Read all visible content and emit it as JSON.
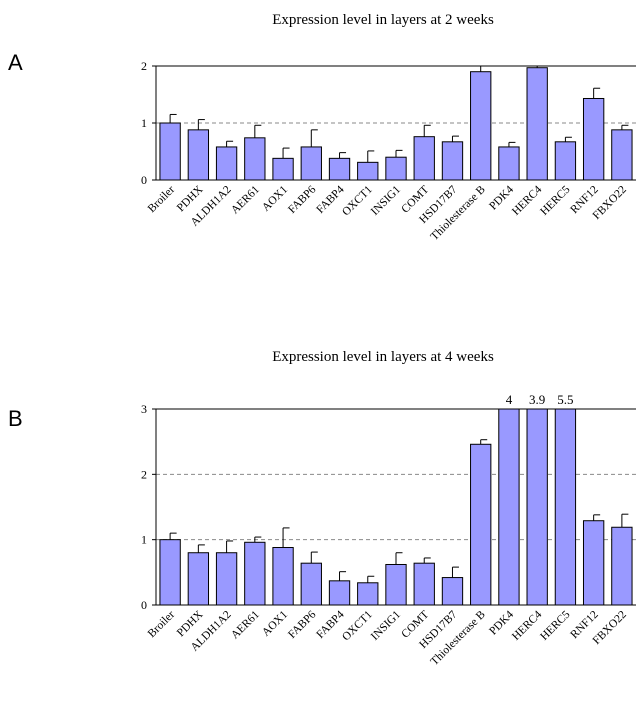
{
  "panels": [
    {
      "letter": "A",
      "chart_data": {
        "type": "bar",
        "title": "Expression level in layers at 2 weeks",
        "categories": [
          "Broiler",
          "PDHX",
          "ALDH1A2",
          "AER61",
          "AOX1",
          "FABP6",
          "FABP4",
          "OXCT1",
          "INSIG1",
          "COMT",
          "HSD17B7",
          "Thiolesterase B",
          "PDK4",
          "HERC4",
          "HERC5",
          "RNF12",
          "FBXO22"
        ],
        "values": [
          1.0,
          0.88,
          0.58,
          0.74,
          0.38,
          0.58,
          0.38,
          0.31,
          0.4,
          0.76,
          0.67,
          1.9,
          0.58,
          1.97,
          0.67,
          1.43,
          0.88
        ],
        "errors": [
          0.15,
          0.18,
          0.1,
          0.22,
          0.18,
          0.3,
          0.1,
          0.2,
          0.12,
          0.2,
          0.1,
          0.12,
          0.08,
          0.05,
          0.08,
          0.18,
          0.08
        ],
        "ylim": [
          0,
          2
        ],
        "yticks": [
          "0",
          "1",
          "2"
        ],
        "bar_color": "#9999ff",
        "reference_line": 1
      }
    },
    {
      "letter": "B",
      "chart_data": {
        "type": "bar",
        "title": "Expression level in layers at 4 weeks",
        "categories": [
          "Broiler",
          "PDHX",
          "ALDH1A2",
          "AER61",
          "AOX1",
          "FABP6",
          "FABP4",
          "OXCT1",
          "INSIG1",
          "COMT",
          "HSD17B7",
          "Thiolesterase B",
          "PDK4",
          "HERC4",
          "HERC5",
          "RNF12",
          "FBXO22"
        ],
        "values": [
          1.0,
          0.8,
          0.8,
          0.96,
          0.88,
          0.64,
          0.37,
          0.34,
          0.62,
          0.64,
          0.42,
          2.46,
          4,
          3.9,
          5.5,
          1.29,
          1.19
        ],
        "errors": [
          0.1,
          0.12,
          0.18,
          0.08,
          0.3,
          0.17,
          0.14,
          0.1,
          0.18,
          0.08,
          0.16,
          0.07,
          0,
          0,
          0,
          0.09,
          0.2
        ],
        "value_labels": [
          "",
          "",
          "",
          "",
          "",
          "",
          "",
          "",
          "",
          "",
          "",
          "",
          "4",
          "3.9",
          "5.5",
          "",
          ""
        ],
        "ylim": [
          0,
          3
        ],
        "yticks": [
          "0",
          "1",
          "2",
          "3"
        ],
        "bar_color": "#9999ff",
        "reference_line": 1
      }
    }
  ]
}
